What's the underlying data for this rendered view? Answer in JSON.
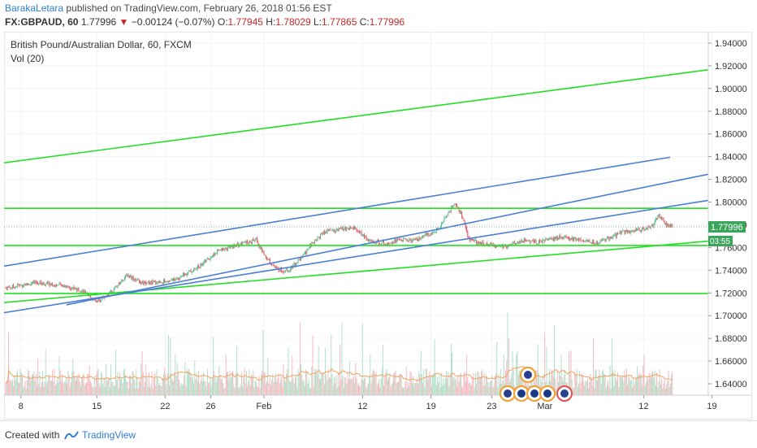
{
  "header": {
    "author": "BarakaLetara",
    "published_text": " published on TradingView.com, February 26, 2018 01:56 EST",
    "symbol": "FX:GBPAUD, 60",
    "last_price": "1.77996",
    "change_arrow": "▼",
    "change": "−0.00124 (−0.07%)",
    "o_label": "O:",
    "o_value": "1.77945",
    "h_label": "H:",
    "h_value": "1.78029",
    "l_label": "L:",
    "l_value": "1.77865",
    "c_label": "C:",
    "c_value": "1.77996"
  },
  "legend": {
    "instrument": "British Pound/Australian Dollar, 60, FXCM",
    "volume": "Vol (20)"
  },
  "price_badge": {
    "value": "1.77996",
    "countdown": "03:55"
  },
  "footer": {
    "created_with": "Created with",
    "brand": "TradingView"
  },
  "colors": {
    "up": "#53b987",
    "down": "#eb4d5c",
    "green_line": "#21e021",
    "blue_line": "#4a7fd4",
    "badge_bg": "#3ba55c",
    "volume_ma": "#f4a460"
  },
  "chart_data": {
    "type": "candlestick",
    "y_axis_labels": [
      "1.94000",
      "1.92000",
      "1.90000",
      "1.88000",
      "1.86000",
      "1.84000",
      "1.82000",
      "1.80000",
      "1.78000",
      "1.76000",
      "1.74000",
      "1.72000",
      "1.70000",
      "1.68000",
      "1.66000",
      "1.64000"
    ],
    "x_axis_labels": [
      "8",
      "15",
      "22",
      "26",
      "Feb",
      "12",
      "19",
      "23",
      "Mar",
      "12",
      "19"
    ],
    "ylim": [
      1.63,
      1.95
    ],
    "close_path": [
      [
        0,
        1.7245
      ],
      [
        4,
        1.729
      ],
      [
        8,
        1.726
      ],
      [
        10,
        1.722
      ],
      [
        12,
        1.712
      ],
      [
        14,
        1.721
      ],
      [
        16,
        1.736
      ],
      [
        18,
        1.728
      ],
      [
        22,
        1.731
      ],
      [
        25,
        1.741
      ],
      [
        28,
        1.757
      ],
      [
        31,
        1.763
      ],
      [
        33,
        1.767
      ],
      [
        34,
        1.754
      ],
      [
        35.5,
        1.742
      ],
      [
        37,
        1.739
      ],
      [
        39,
        1.751
      ],
      [
        40.5,
        1.765
      ],
      [
        42,
        1.774
      ],
      [
        44,
        1.776
      ],
      [
        46,
        1.777
      ],
      [
        48,
        1.765
      ],
      [
        50,
        1.764
      ],
      [
        52,
        1.767
      ],
      [
        54,
        1.766
      ],
      [
        57,
        1.776
      ],
      [
        59,
        1.799
      ],
      [
        60,
        1.789
      ],
      [
        61,
        1.767
      ],
      [
        63,
        1.763
      ],
      [
        66,
        1.761
      ],
      [
        68,
        1.766
      ],
      [
        70,
        1.765
      ],
      [
        73,
        1.769
      ],
      [
        76,
        1.766
      ],
      [
        78,
        1.764
      ],
      [
        79,
        1.767
      ],
      [
        81,
        1.773
      ],
      [
        83,
        1.775
      ],
      [
        85,
        1.778
      ],
      [
        86,
        1.789
      ],
      [
        87,
        1.78
      ],
      [
        88,
        1.778
      ]
    ],
    "volume_ylim": [
      0,
      1
    ]
  }
}
